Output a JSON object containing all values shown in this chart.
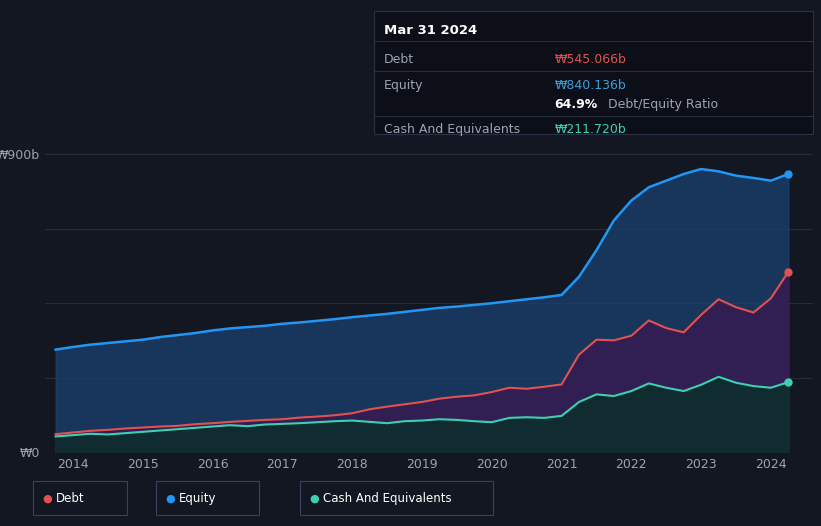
{
  "background_color": "#131722",
  "plot_bg_color": "#131722",
  "grid_color": "#2a3045",
  "title_box": {
    "date": "Mar 31 2024",
    "debt_label": "Debt",
    "debt_value": "₩545.066b",
    "equity_label": "Equity",
    "equity_value": "₩840.136b",
    "ratio_value": "64.9%",
    "ratio_label": "Debt/Equity Ratio",
    "cash_label": "Cash And Equivalents",
    "cash_value": "₩211.720b",
    "debt_color": "#e05252",
    "equity_color": "#39a0d9",
    "cash_color": "#3ecfb2",
    "label_color": "#9ba3b2",
    "ratio_white": "#ffffff",
    "border_color": "#2a3045"
  },
  "ylabel": "₩900b",
  "y0label": "₩0",
  "ylim": [
    0,
    1000
  ],
  "xlim": [
    2013.6,
    2024.6
  ],
  "xticks": [
    2014,
    2015,
    2016,
    2017,
    2018,
    2019,
    2020,
    2021,
    2022,
    2023,
    2024
  ],
  "equity_color": "#2196f3",
  "debt_color": "#e05252",
  "cash_color": "#3ecfb2",
  "legend_items": [
    {
      "label": "Debt",
      "color": "#e05252"
    },
    {
      "label": "Equity",
      "color": "#2196f3"
    },
    {
      "label": "Cash And Equivalents",
      "color": "#3ecfb2"
    }
  ],
  "equity": {
    "x": [
      2013.75,
      2014.0,
      2014.25,
      2014.5,
      2014.75,
      2015.0,
      2015.25,
      2015.5,
      2015.75,
      2016.0,
      2016.25,
      2016.5,
      2016.75,
      2017.0,
      2017.25,
      2017.5,
      2017.75,
      2018.0,
      2018.25,
      2018.5,
      2018.75,
      2019.0,
      2019.25,
      2019.5,
      2019.75,
      2020.0,
      2020.25,
      2020.5,
      2020.75,
      2021.0,
      2021.25,
      2021.5,
      2021.75,
      2022.0,
      2022.25,
      2022.5,
      2022.75,
      2023.0,
      2023.25,
      2023.5,
      2023.75,
      2024.0,
      2024.25
    ],
    "y": [
      310,
      318,
      325,
      330,
      335,
      340,
      348,
      354,
      360,
      368,
      374,
      378,
      382,
      388,
      392,
      397,
      402,
      408,
      413,
      418,
      424,
      430,
      436,
      440,
      445,
      450,
      456,
      462,
      468,
      475,
      530,
      610,
      700,
      760,
      800,
      820,
      840,
      855,
      848,
      835,
      828,
      820,
      840
    ]
  },
  "debt": {
    "x": [
      2013.75,
      2014.0,
      2014.25,
      2014.5,
      2014.75,
      2015.0,
      2015.25,
      2015.5,
      2015.75,
      2016.0,
      2016.25,
      2016.5,
      2016.75,
      2017.0,
      2017.25,
      2017.5,
      2017.75,
      2018.0,
      2018.25,
      2018.5,
      2018.75,
      2019.0,
      2019.25,
      2019.5,
      2019.75,
      2020.0,
      2020.25,
      2020.5,
      2020.75,
      2021.0,
      2021.25,
      2021.5,
      2021.75,
      2022.0,
      2022.25,
      2022.5,
      2022.75,
      2023.0,
      2023.25,
      2023.5,
      2023.75,
      2024.0,
      2024.25
    ],
    "y": [
      55,
      60,
      65,
      68,
      72,
      75,
      78,
      80,
      85,
      88,
      92,
      95,
      98,
      100,
      105,
      108,
      112,
      118,
      130,
      138,
      145,
      152,
      162,
      168,
      172,
      182,
      195,
      192,
      198,
      205,
      295,
      340,
      338,
      352,
      398,
      375,
      362,
      415,
      462,
      438,
      422,
      465,
      545
    ]
  },
  "cash": {
    "x": [
      2013.75,
      2014.0,
      2014.25,
      2014.5,
      2014.75,
      2015.0,
      2015.25,
      2015.5,
      2015.75,
      2016.0,
      2016.25,
      2016.5,
      2016.75,
      2017.0,
      2017.25,
      2017.5,
      2017.75,
      2018.0,
      2018.25,
      2018.5,
      2018.75,
      2019.0,
      2019.25,
      2019.5,
      2019.75,
      2020.0,
      2020.25,
      2020.5,
      2020.75,
      2021.0,
      2021.25,
      2021.5,
      2021.75,
      2022.0,
      2022.25,
      2022.5,
      2022.75,
      2023.0,
      2023.25,
      2023.5,
      2023.75,
      2024.0,
      2024.25
    ],
    "y": [
      48,
      52,
      56,
      54,
      58,
      62,
      66,
      70,
      74,
      78,
      82,
      79,
      84,
      86,
      88,
      91,
      94,
      96,
      92,
      88,
      94,
      96,
      100,
      98,
      94,
      91,
      104,
      106,
      104,
      110,
      152,
      175,
      170,
      185,
      208,
      195,
      185,
      204,
      228,
      210,
      200,
      195,
      212
    ]
  }
}
